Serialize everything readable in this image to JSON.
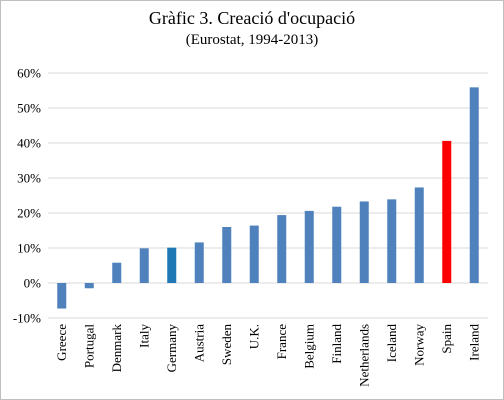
{
  "chart_data": {
    "type": "bar",
    "title": "Gràfic 3. Creació d'ocupació",
    "subtitle": "(Eurostat, 1994-2013)",
    "categories": [
      "Greece",
      "Portugal",
      "Denmark",
      "Italy",
      "Germany",
      "Austria",
      "Sweden",
      "U.K.",
      "France",
      "Belgium",
      "Finland",
      "Netherlands",
      "Iceland",
      "Norway",
      "Spain",
      "Ireland"
    ],
    "values": [
      -7.3,
      -1.5,
      5.8,
      9.9,
      10.1,
      11.6,
      16.0,
      16.4,
      19.4,
      20.6,
      21.8,
      23.3,
      23.9,
      27.3,
      40.6,
      55.9
    ],
    "colors": [
      "#4f81bd",
      "#4f81bd",
      "#4f81bd",
      "#4f81bd",
      "#1f77b4",
      "#4f81bd",
      "#4f81bd",
      "#4f81bd",
      "#4f81bd",
      "#4f81bd",
      "#4f81bd",
      "#4f81bd",
      "#4f81bd",
      "#4f81bd",
      "#ff0000",
      "#4f81bd"
    ],
    "ylim": [
      -10,
      60
    ],
    "yticks": [
      -10,
      0,
      10,
      20,
      30,
      40,
      50,
      60
    ],
    "ytick_labels": [
      "-10%",
      "0%",
      "10%",
      "20%",
      "30%",
      "40%",
      "50%",
      "60%"
    ],
    "xlabel": "",
    "ylabel": "",
    "grid": true,
    "legend": "none"
  }
}
